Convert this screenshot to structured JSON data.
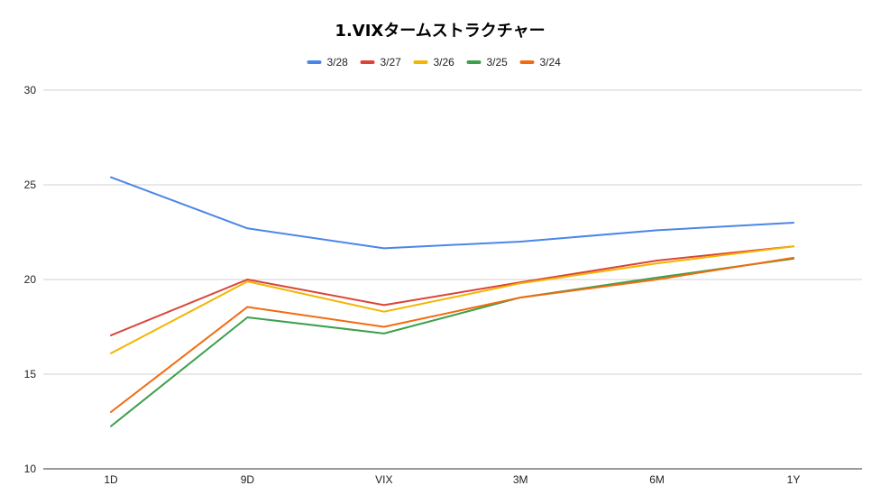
{
  "chart_data": {
    "type": "line",
    "title": "1.VIXタームストラクチャー",
    "xlabel": "",
    "ylabel": "",
    "categories": [
      "1D",
      "9D",
      "VIX",
      "3M",
      "6M",
      "1Y"
    ],
    "ylim": [
      10,
      30
    ],
    "yticks": [
      10,
      15,
      20,
      25,
      30
    ],
    "grid": true,
    "legend_position": "top-center",
    "series": [
      {
        "name": "3/28",
        "color": "#4a86e8",
        "values": [
          25.4,
          22.7,
          21.65,
          22.0,
          22.6,
          23.0
        ]
      },
      {
        "name": "3/27",
        "color": "#db4437",
        "values": [
          17.05,
          20.0,
          18.65,
          19.85,
          21.0,
          21.75
        ]
      },
      {
        "name": "3/26",
        "color": "#f4b400",
        "values": [
          16.1,
          19.9,
          18.3,
          19.8,
          20.85,
          21.75
        ]
      },
      {
        "name": "3/25",
        "color": "#3ea04b",
        "values": [
          12.25,
          18.0,
          17.15,
          19.05,
          20.1,
          21.1
        ]
      },
      {
        "name": "3/24",
        "color": "#f26b10",
        "values": [
          13.0,
          18.55,
          17.5,
          19.05,
          20.0,
          21.15
        ]
      }
    ]
  }
}
